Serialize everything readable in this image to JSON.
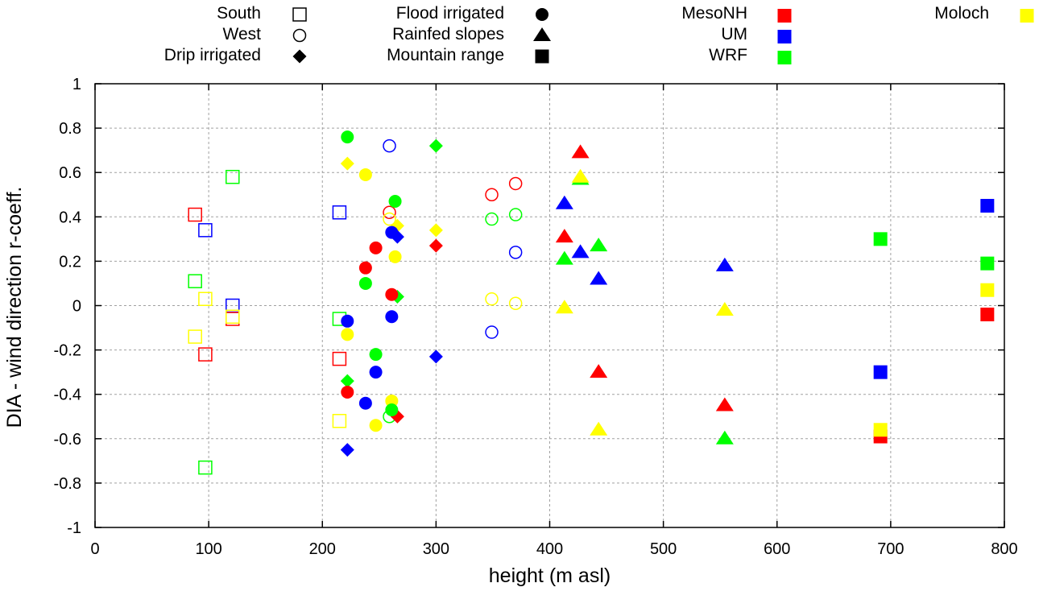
{
  "chart_data": {
    "type": "scatter",
    "title": "",
    "xlabel": "height (m asl)",
    "ylabel": "DIA - wind direction r-coeff.",
    "xlim": [
      0,
      800
    ],
    "ylim": [
      -1,
      1
    ],
    "grid": true,
    "x_ticks": [
      "0",
      "100",
      "200",
      "300",
      "400",
      "500",
      "600",
      "700",
      "800"
    ],
    "x_tick_values": [
      0,
      100,
      200,
      300,
      400,
      500,
      600,
      700,
      800
    ],
    "y_ticks": [
      "1",
      "0.8",
      "0.6",
      "0.4",
      "0.2",
      "0",
      "-0.2",
      "-0.4",
      "-0.6",
      "-0.8",
      "-1"
    ],
    "y_tick_values": [
      1,
      0.8,
      0.6,
      0.4,
      0.2,
      0,
      -0.2,
      -0.4,
      -0.6,
      -0.8,
      -1
    ],
    "legend_placement": "top",
    "legend_shapes": [
      {
        "label": "South",
        "shape": "square-open"
      },
      {
        "label": "West",
        "shape": "circle-open"
      },
      {
        "label": "Drip irrigated",
        "shape": "diamond"
      },
      {
        "label": "Flood irrigated",
        "shape": "circle"
      },
      {
        "label": "Rainfed slopes",
        "shape": "triangle"
      },
      {
        "label": "Mountain range",
        "shape": "square"
      }
    ],
    "legend_models": [
      {
        "label": "MesoNH",
        "color": "#ff0000"
      },
      {
        "label": "UM",
        "color": "#0000ff"
      },
      {
        "label": "WRF",
        "color": "#00ff00"
      },
      {
        "label": "Moloch",
        "color": "#ffff00"
      }
    ],
    "series": [
      {
        "name": "South",
        "shape": "square-open",
        "points": [
          {
            "x": 88,
            "y": 0.41,
            "model": "MesoNH"
          },
          {
            "x": 97,
            "y": 0.34,
            "model": "UM"
          },
          {
            "x": 121,
            "y": 0.58,
            "model": "WRF"
          },
          {
            "x": 88,
            "y": 0.11,
            "model": "WRF"
          },
          {
            "x": 97,
            "y": 0.03,
            "model": "Moloch"
          },
          {
            "x": 121,
            "y": 0.0,
            "model": "UM"
          },
          {
            "x": 121,
            "y": -0.06,
            "model": "MesoNH"
          },
          {
            "x": 121,
            "y": -0.05,
            "model": "Moloch"
          },
          {
            "x": 88,
            "y": -0.14,
            "model": "Moloch"
          },
          {
            "x": 97,
            "y": -0.22,
            "model": "MesoNH"
          },
          {
            "x": 97,
            "y": -0.73,
            "model": "WRF"
          },
          {
            "x": 215,
            "y": 0.42,
            "model": "UM"
          },
          {
            "x": 215,
            "y": -0.06,
            "model": "WRF"
          },
          {
            "x": 215,
            "y": -0.24,
            "model": "MesoNH"
          },
          {
            "x": 215,
            "y": -0.52,
            "model": "Moloch"
          }
        ]
      },
      {
        "name": "West",
        "shape": "circle-open",
        "points": [
          {
            "x": 259,
            "y": 0.72,
            "model": "UM"
          },
          {
            "x": 259,
            "y": 0.42,
            "model": "MesoNH"
          },
          {
            "x": 259,
            "y": 0.39,
            "model": "Moloch"
          },
          {
            "x": 259,
            "y": -0.5,
            "model": "WRF"
          },
          {
            "x": 349,
            "y": 0.5,
            "model": "MesoNH"
          },
          {
            "x": 370,
            "y": 0.55,
            "model": "MesoNH"
          },
          {
            "x": 349,
            "y": 0.39,
            "model": "WRF"
          },
          {
            "x": 370,
            "y": 0.41,
            "model": "WRF"
          },
          {
            "x": 370,
            "y": 0.24,
            "model": "UM"
          },
          {
            "x": 349,
            "y": 0.03,
            "model": "Moloch"
          },
          {
            "x": 370,
            "y": 0.01,
            "model": "Moloch"
          },
          {
            "x": 349,
            "y": -0.12,
            "model": "UM"
          }
        ]
      },
      {
        "name": "Drip irrigated",
        "shape": "diamond",
        "points": [
          {
            "x": 222,
            "y": 0.64,
            "model": "Moloch"
          },
          {
            "x": 300,
            "y": 0.72,
            "model": "WRF"
          },
          {
            "x": 266,
            "y": 0.36,
            "model": "Moloch"
          },
          {
            "x": 266,
            "y": 0.31,
            "model": "UM"
          },
          {
            "x": 300,
            "y": 0.34,
            "model": "Moloch"
          },
          {
            "x": 300,
            "y": 0.27,
            "model": "MesoNH"
          },
          {
            "x": 266,
            "y": 0.04,
            "model": "WRF"
          },
          {
            "x": 300,
            "y": -0.23,
            "model": "UM"
          },
          {
            "x": 222,
            "y": -0.34,
            "model": "WRF"
          },
          {
            "x": 266,
            "y": -0.5,
            "model": "MesoNH"
          },
          {
            "x": 222,
            "y": -0.65,
            "model": "UM"
          }
        ]
      },
      {
        "name": "Flood irrigated",
        "shape": "circle",
        "points": [
          {
            "x": 222,
            "y": 0.76,
            "model": "WRF"
          },
          {
            "x": 238,
            "y": 0.59,
            "model": "Moloch"
          },
          {
            "x": 264,
            "y": 0.47,
            "model": "WRF"
          },
          {
            "x": 261,
            "y": 0.33,
            "model": "UM"
          },
          {
            "x": 247,
            "y": 0.26,
            "model": "MesoNH"
          },
          {
            "x": 264,
            "y": 0.22,
            "model": "Moloch"
          },
          {
            "x": 238,
            "y": 0.17,
            "model": "MesoNH"
          },
          {
            "x": 238,
            "y": 0.1,
            "model": "WRF"
          },
          {
            "x": 261,
            "y": 0.05,
            "model": "MesoNH"
          },
          {
            "x": 222,
            "y": -0.07,
            "model": "UM"
          },
          {
            "x": 261,
            "y": -0.05,
            "model": "UM"
          },
          {
            "x": 222,
            "y": -0.13,
            "model": "Moloch"
          },
          {
            "x": 247,
            "y": -0.22,
            "model": "WRF"
          },
          {
            "x": 247,
            "y": -0.3,
            "model": "UM"
          },
          {
            "x": 222,
            "y": -0.39,
            "model": "MesoNH"
          },
          {
            "x": 238,
            "y": -0.44,
            "model": "UM"
          },
          {
            "x": 261,
            "y": -0.43,
            "model": "Moloch"
          },
          {
            "x": 261,
            "y": -0.47,
            "model": "WRF"
          },
          {
            "x": 247,
            "y": -0.54,
            "model": "Moloch"
          }
        ]
      },
      {
        "name": "Rainfed slopes",
        "shape": "triangle",
        "points": [
          {
            "x": 427,
            "y": 0.69,
            "model": "MesoNH"
          },
          {
            "x": 427,
            "y": 0.57,
            "model": "WRF"
          },
          {
            "x": 427,
            "y": 0.58,
            "model": "Moloch"
          },
          {
            "x": 413,
            "y": 0.46,
            "model": "UM"
          },
          {
            "x": 413,
            "y": 0.31,
            "model": "MesoNH"
          },
          {
            "x": 443,
            "y": 0.27,
            "model": "WRF"
          },
          {
            "x": 427,
            "y": 0.24,
            "model": "UM"
          },
          {
            "x": 413,
            "y": 0.21,
            "model": "WRF"
          },
          {
            "x": 443,
            "y": 0.12,
            "model": "UM"
          },
          {
            "x": 413,
            "y": -0.01,
            "model": "Moloch"
          },
          {
            "x": 443,
            "y": -0.3,
            "model": "MesoNH"
          },
          {
            "x": 443,
            "y": -0.56,
            "model": "Moloch"
          },
          {
            "x": 554,
            "y": 0.18,
            "model": "UM"
          },
          {
            "x": 554,
            "y": -0.02,
            "model": "Moloch"
          },
          {
            "x": 554,
            "y": -0.45,
            "model": "MesoNH"
          },
          {
            "x": 554,
            "y": -0.6,
            "model": "WRF"
          }
        ]
      },
      {
        "name": "Mountain range",
        "shape": "square",
        "points": [
          {
            "x": 691,
            "y": 0.3,
            "model": "WRF"
          },
          {
            "x": 691,
            "y": -0.3,
            "model": "UM"
          },
          {
            "x": 691,
            "y": -0.59,
            "model": "MesoNH"
          },
          {
            "x": 691,
            "y": -0.56,
            "model": "Moloch"
          },
          {
            "x": 785,
            "y": 0.45,
            "model": "UM"
          },
          {
            "x": 785,
            "y": 0.19,
            "model": "WRF"
          },
          {
            "x": 785,
            "y": 0.07,
            "model": "Moloch"
          },
          {
            "x": 785,
            "y": -0.04,
            "model": "MesoNH"
          }
        ]
      }
    ]
  }
}
